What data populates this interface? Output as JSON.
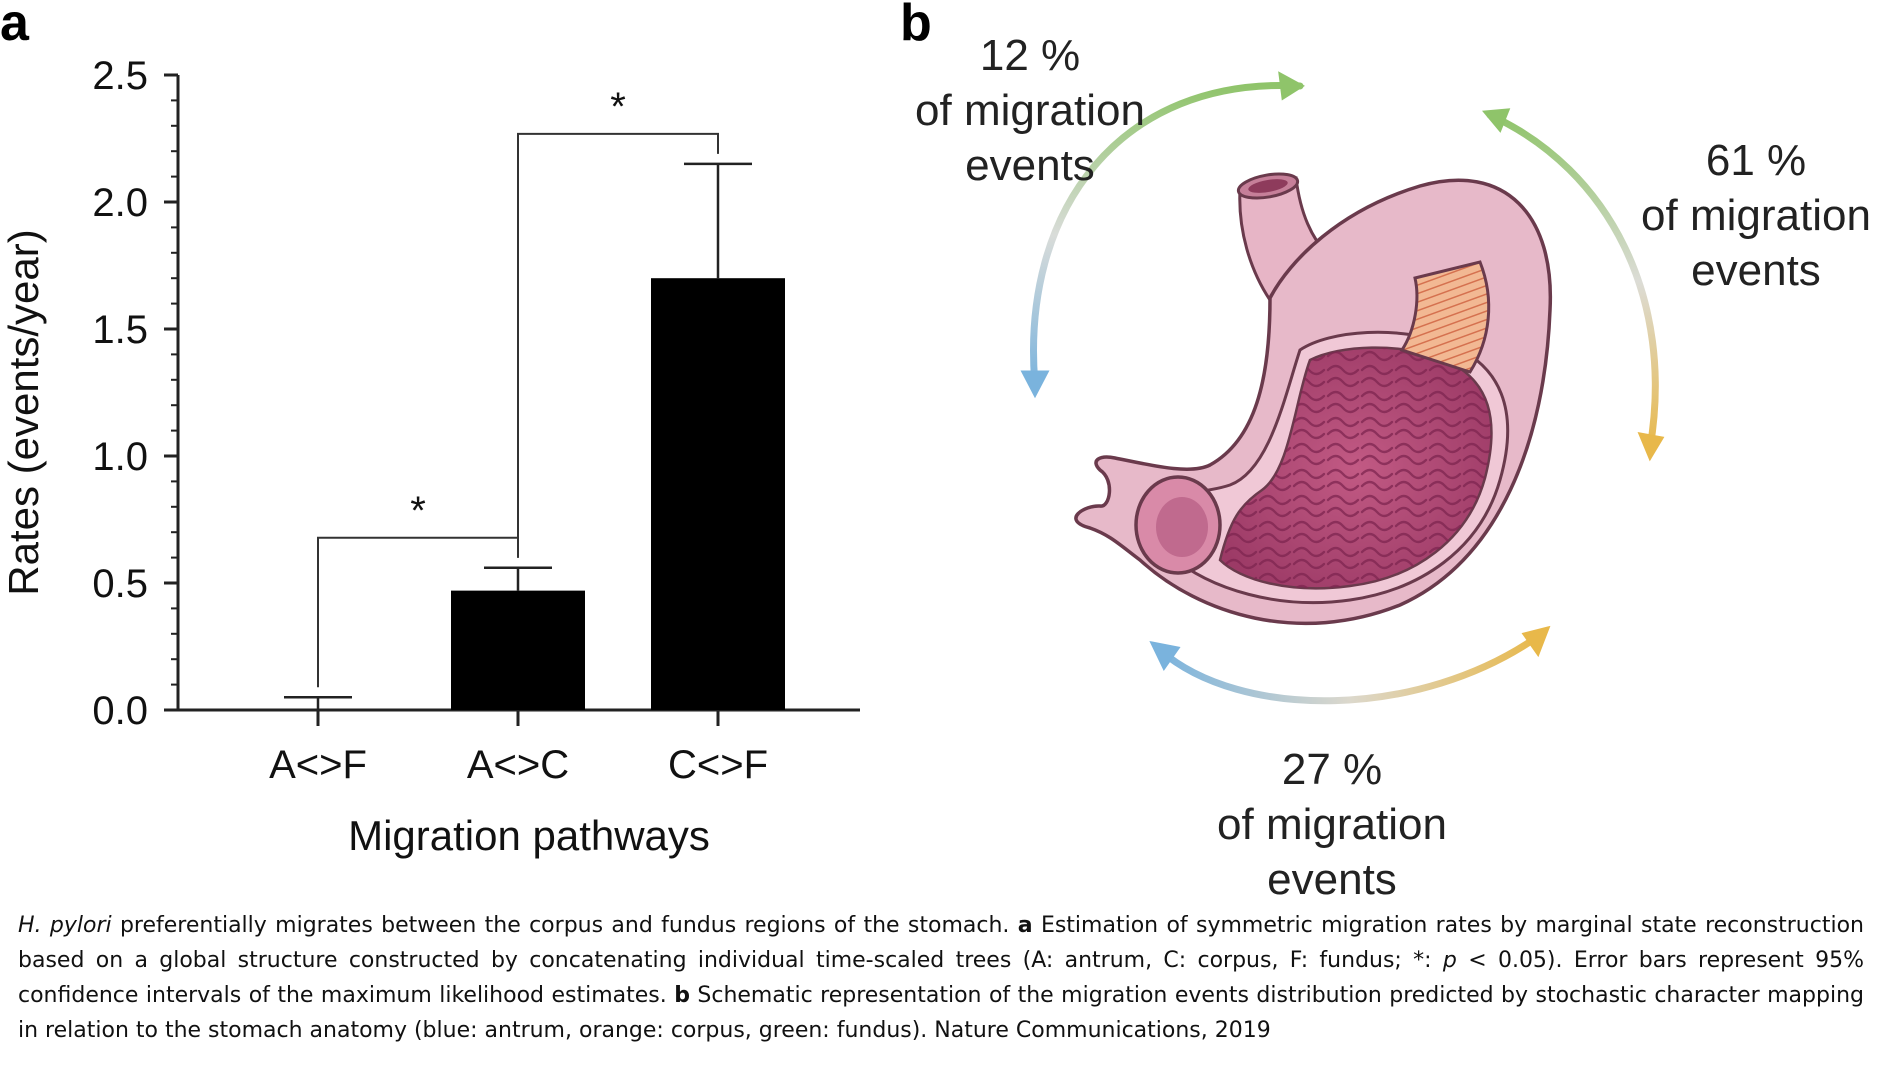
{
  "panels": {
    "a": {
      "letter": "a"
    },
    "b": {
      "letter": "b"
    }
  },
  "chart_data": {
    "type": "bar",
    "categories": [
      "A<>F",
      "A<>C",
      "C<>F"
    ],
    "values": [
      0.0,
      0.47,
      1.7
    ],
    "error_upper": [
      0.05,
      0.56,
      2.15
    ],
    "xlabel": "Migration pathways",
    "ylabel": "Rates (events/year)",
    "ylim": [
      0,
      2.5
    ],
    "yticks": [
      "0.0",
      "0.5",
      "1.0",
      "1.5",
      "2.0",
      "2.5"
    ],
    "bar_color": "#000000",
    "significance": [
      {
        "from": "A<>F",
        "to": "A<>C",
        "label": "*"
      },
      {
        "from": "A<>C",
        "to": "C<>F",
        "label": "*"
      }
    ]
  },
  "migration_diagram": {
    "colors": {
      "antrum": "#7ab3dd",
      "corpus": "#e8b84a",
      "fundus": "#8fc46a"
    },
    "labels": [
      {
        "pct": "12 %",
        "line2": "of migration",
        "line3": "events"
      },
      {
        "pct": "61 %",
        "line2": "of migration",
        "line3": "events"
      },
      {
        "pct": "27 %",
        "line2": "of migration",
        "line3": "events"
      }
    ]
  },
  "caption": {
    "species": "H. pylori",
    "part1": " preferentially migrates between the corpus and fundus regions of the stomach. ",
    "a_letter": "a",
    "part2": " Estimation of symmetric migration rates by marginal state reconstruction based on a global structure constructed by concatenating individual time-scaled trees (A: antrum, C: corpus, F: fundus; *: ",
    "p_symbol": "p",
    "part3": " < 0.05). Error bars represent 95% confidence intervals of the maximum likelihood estimates. ",
    "b_letter": "b",
    "part4": " Schematic representation of the migration events distribution predicted by stochastic character mapping in relation to the stomach anatomy (blue: antrum, orange: corpus, green: fundus). Nature Communications, 2019"
  }
}
